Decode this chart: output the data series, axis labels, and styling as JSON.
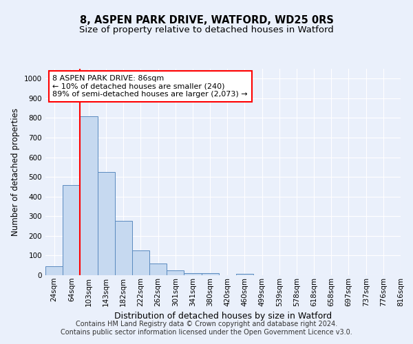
{
  "title": "8, ASPEN PARK DRIVE, WATFORD, WD25 0RS",
  "subtitle": "Size of property relative to detached houses in Watford",
  "xlabel": "Distribution of detached houses by size in Watford",
  "ylabel": "Number of detached properties",
  "bar_values": [
    45,
    460,
    810,
    525,
    275,
    125,
    60,
    25,
    12,
    12,
    0,
    8,
    0,
    0,
    0,
    0,
    0,
    0,
    0,
    0
  ],
  "categories": [
    "24sqm",
    "64sqm",
    "103sqm",
    "143sqm",
    "182sqm",
    "222sqm",
    "262sqm",
    "301sqm",
    "341sqm",
    "380sqm",
    "420sqm",
    "460sqm",
    "499sqm",
    "539sqm",
    "578sqm",
    "618sqm",
    "658sqm",
    "697sqm",
    "737sqm",
    "776sqm",
    "816sqm"
  ],
  "bar_color": "#c6d9f0",
  "bar_edge_color": "#5a8abf",
  "vline_x_idx": 1.5,
  "vline_color": "red",
  "annotation_text": "8 ASPEN PARK DRIVE: 86sqm\n← 10% of detached houses are smaller (240)\n89% of semi-detached houses are larger (2,073) →",
  "ylim": [
    0,
    1050
  ],
  "yticks": [
    0,
    100,
    200,
    300,
    400,
    500,
    600,
    700,
    800,
    900,
    1000
  ],
  "footer_line1": "Contains HM Land Registry data © Crown copyright and database right 2024.",
  "footer_line2": "Contains public sector information licensed under the Open Government Licence v3.0.",
  "bg_color": "#eaf0fb",
  "plot_bg_color": "#eaf0fb",
  "grid_color": "#ffffff",
  "title_fontsize": 10.5,
  "subtitle_fontsize": 9.5,
  "xlabel_fontsize": 9,
  "ylabel_fontsize": 8.5,
  "tick_fontsize": 7.5,
  "annotation_fontsize": 8,
  "footer_fontsize": 7
}
